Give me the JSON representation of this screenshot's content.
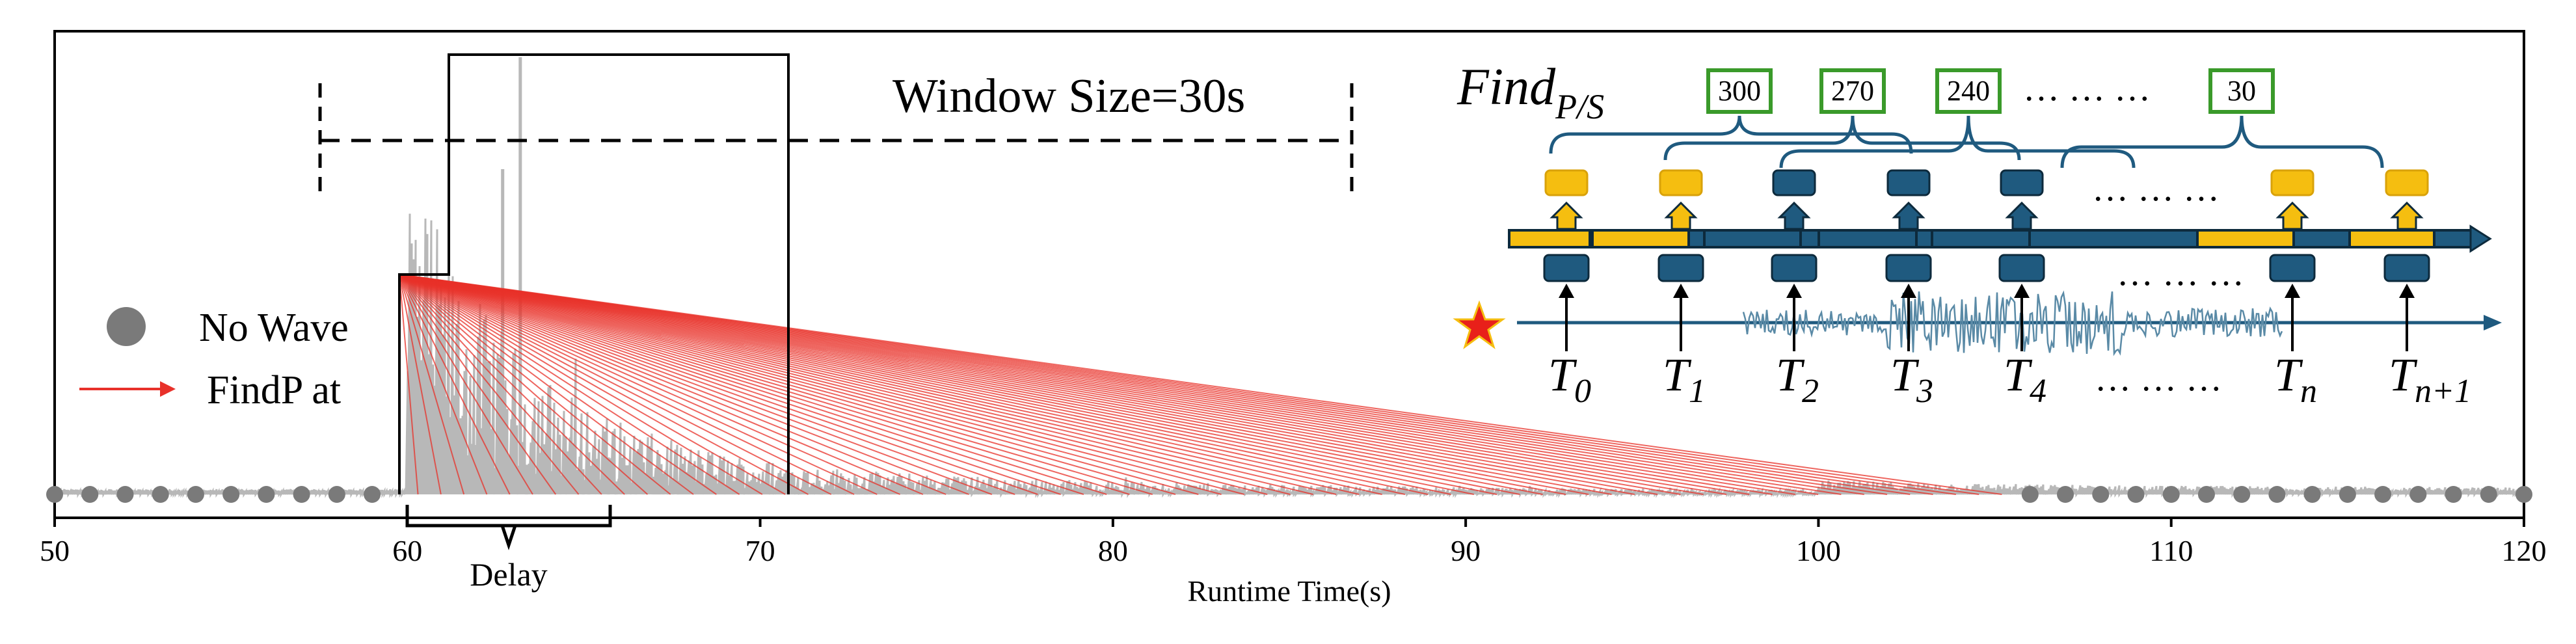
{
  "chart_data": {
    "type": "diagram",
    "xlabel": "Runtime Time(s)",
    "xlim": [
      50,
      120
    ],
    "x_ticks": [
      "50",
      "60",
      "70",
      "80",
      "90",
      "100",
      "110",
      "120"
    ],
    "window_label": "Window Size=30s",
    "delay_label": "Delay",
    "legend": {
      "no_wave": "No Wave",
      "findp": "FindP at"
    },
    "inset": {
      "title_main": "Find",
      "title_sub": "P/S",
      "window_counts": [
        "300",
        "270",
        "240",
        "30"
      ],
      "ellipsis": "… … …",
      "time_labels": [
        {
          "main": "T",
          "sub": "0"
        },
        {
          "main": "T",
          "sub": "1"
        },
        {
          "main": "T",
          "sub": "2"
        },
        {
          "main": "T",
          "sub": "3"
        },
        {
          "main": "T",
          "sub": "4"
        },
        {
          "main": "T",
          "sub": "n"
        },
        {
          "main": "T",
          "sub": "n+1"
        }
      ]
    },
    "colors": {
      "axis": "#000000",
      "trace": "#b8b8b8",
      "findp_line": "#e8312a",
      "dot": "#7a7a7a",
      "inset_blue": "#1f5a7f",
      "inset_yellow": "#f5be10",
      "box_green": "#3a9a2a",
      "star": "#e8201a"
    }
  }
}
